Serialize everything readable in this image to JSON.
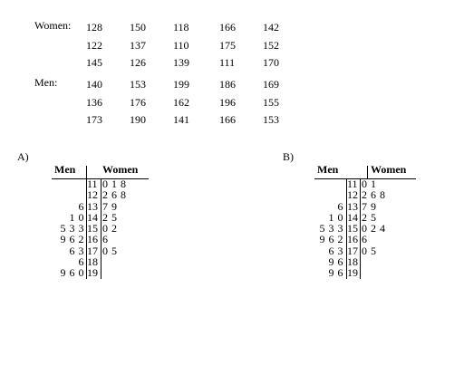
{
  "data_table": {
    "women_label": "Women:",
    "men_label": "Men:",
    "women_rows": [
      [
        "128",
        "150",
        "118",
        "166",
        "142"
      ],
      [
        "122",
        "137",
        "110",
        "175",
        "152"
      ],
      [
        "145",
        "126",
        "139",
        "111",
        "170"
      ]
    ],
    "men_rows": [
      [
        "140",
        "153",
        "199",
        "186",
        "169"
      ],
      [
        "136",
        "176",
        "162",
        "196",
        "155"
      ],
      [
        "173",
        "190",
        "141",
        "166",
        "153"
      ]
    ]
  },
  "options": [
    {
      "label": "A)",
      "header_left": "Men",
      "header_right": "Women",
      "rows": [
        {
          "left": "",
          "stem": "11",
          "right": "0 1 8"
        },
        {
          "left": "",
          "stem": "12",
          "right": "2 6 8"
        },
        {
          "left": "6",
          "stem": "13",
          "right": "7 9"
        },
        {
          "left": "1 0",
          "stem": "14",
          "right": "2 5"
        },
        {
          "left": "5 3 3",
          "stem": "15",
          "right": "0 2"
        },
        {
          "left": "9 6 2",
          "stem": "16",
          "right": "6"
        },
        {
          "left": "6 3",
          "stem": "17",
          "right": "0 5"
        },
        {
          "left": "6",
          "stem": "18",
          "right": ""
        },
        {
          "left": "9 6 0",
          "stem": "19",
          "right": ""
        }
      ]
    },
    {
      "label": "B)",
      "header_left": "Men",
      "header_right": "Women",
      "rows": [
        {
          "left": "",
          "stem": "11",
          "right": "0 1"
        },
        {
          "left": "",
          "stem": "12",
          "right": "2 6 8"
        },
        {
          "left": "6",
          "stem": "13",
          "right": "7 9"
        },
        {
          "left": "1 0",
          "stem": "14",
          "right": "2 5"
        },
        {
          "left": "5 3 3",
          "stem": "15",
          "right": "0 2 4"
        },
        {
          "left": "9 6 2",
          "stem": "16",
          "right": "6"
        },
        {
          "left": "6 3",
          "stem": "17",
          "right": "0 5"
        },
        {
          "left": "9 6",
          "stem": "18",
          "right": ""
        },
        {
          "left": "9 6",
          "stem": "19",
          "right": ""
        }
      ]
    }
  ]
}
